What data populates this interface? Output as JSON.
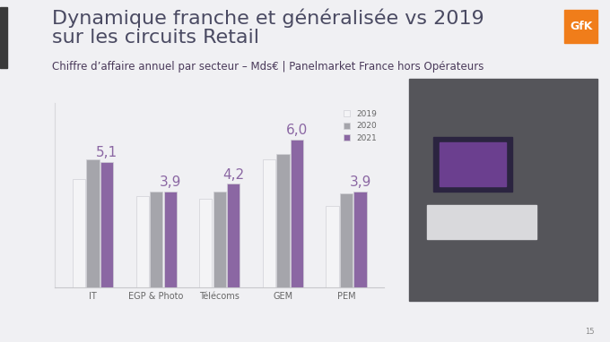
{
  "chart_data": {
    "type": "bar",
    "title": "Dynamique franche et généralisée vs 2019\nsur les circuits Retail",
    "subtitle": "Chiffre d’affaire annuel par secteur – Mds€ | Panelmarket France hors Opérateurs",
    "categories": [
      "IT",
      "EGP & Photo",
      "Télécoms",
      "GEM",
      "PEM"
    ],
    "series": [
      {
        "name": "2019",
        "color": "#f4f4f6",
        "values": [
          4.4,
          3.7,
          3.6,
          5.2,
          3.3
        ]
      },
      {
        "name": "2020",
        "color": "#a5a5ab",
        "values": [
          5.2,
          3.9,
          3.9,
          5.4,
          3.8
        ]
      },
      {
        "name": "2021",
        "color": "#8b67a3",
        "values": [
          5.1,
          3.9,
          4.2,
          6.0,
          3.9
        ],
        "data_labels": true,
        "value_labels": [
          "5,1",
          "3,9",
          "4,2",
          "6,0",
          "3,9"
        ]
      }
    ],
    "ylim": [
      0,
      7.5
    ],
    "yticks": [],
    "tick_labels": "x",
    "grid": false,
    "legend": "upper right"
  },
  "logo": "GfK",
  "page_number": "15"
}
